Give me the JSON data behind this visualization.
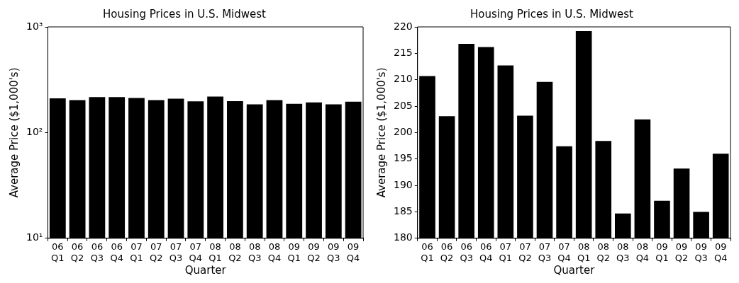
{
  "chart_data": [
    {
      "type": "bar",
      "title": "Housing Prices in U.S. Midwest",
      "xlabel": "Quarter",
      "ylabel": "Average Price ($1,000's)",
      "categories": [
        "06\nQ1",
        "06\nQ2",
        "06\nQ3",
        "06\nQ4",
        "07\nQ1",
        "07\nQ2",
        "07\nQ3",
        "07\nQ4",
        "08\nQ1",
        "08\nQ2",
        "08\nQ3",
        "08\nQ4",
        "09\nQ1",
        "09\nQ2",
        "09\nQ3",
        "09\nQ4"
      ],
      "values": [
        210.7,
        203.1,
        216.8,
        216.2,
        212.7,
        203.2,
        209.6,
        197.4,
        219.2,
        198.4,
        184.7,
        202.5,
        187.1,
        193.2,
        185.0,
        196.0
      ],
      "color": "#000000",
      "log": "y",
      "ylim": [
        10,
        1000
      ],
      "yticks": [
        {
          "value": 10,
          "label": "10¹"
        },
        {
          "value": 100,
          "label": "10²"
        },
        {
          "value": 1000,
          "label": "10³"
        }
      ],
      "grid": false,
      "legend": false
    },
    {
      "type": "bar",
      "title": "Housing Prices in U.S. Midwest",
      "xlabel": "Quarter",
      "ylabel": "Average Price ($1,000's)",
      "categories": [
        "06\nQ1",
        "06\nQ2",
        "06\nQ3",
        "06\nQ4",
        "07\nQ1",
        "07\nQ2",
        "07\nQ3",
        "07\nQ4",
        "08\nQ1",
        "08\nQ2",
        "08\nQ3",
        "08\nQ4",
        "09\nQ1",
        "09\nQ2",
        "09\nQ3",
        "09\nQ4"
      ],
      "values": [
        210.7,
        203.1,
        216.8,
        216.2,
        212.7,
        203.2,
        209.6,
        197.4,
        219.2,
        198.4,
        184.7,
        202.5,
        187.1,
        193.2,
        185.0,
        196.0
      ],
      "color": "#000000",
      "ylim": [
        180,
        220
      ],
      "yticks": [
        180,
        185,
        190,
        195,
        200,
        205,
        210,
        215,
        220
      ],
      "grid": false,
      "legend": false
    }
  ]
}
